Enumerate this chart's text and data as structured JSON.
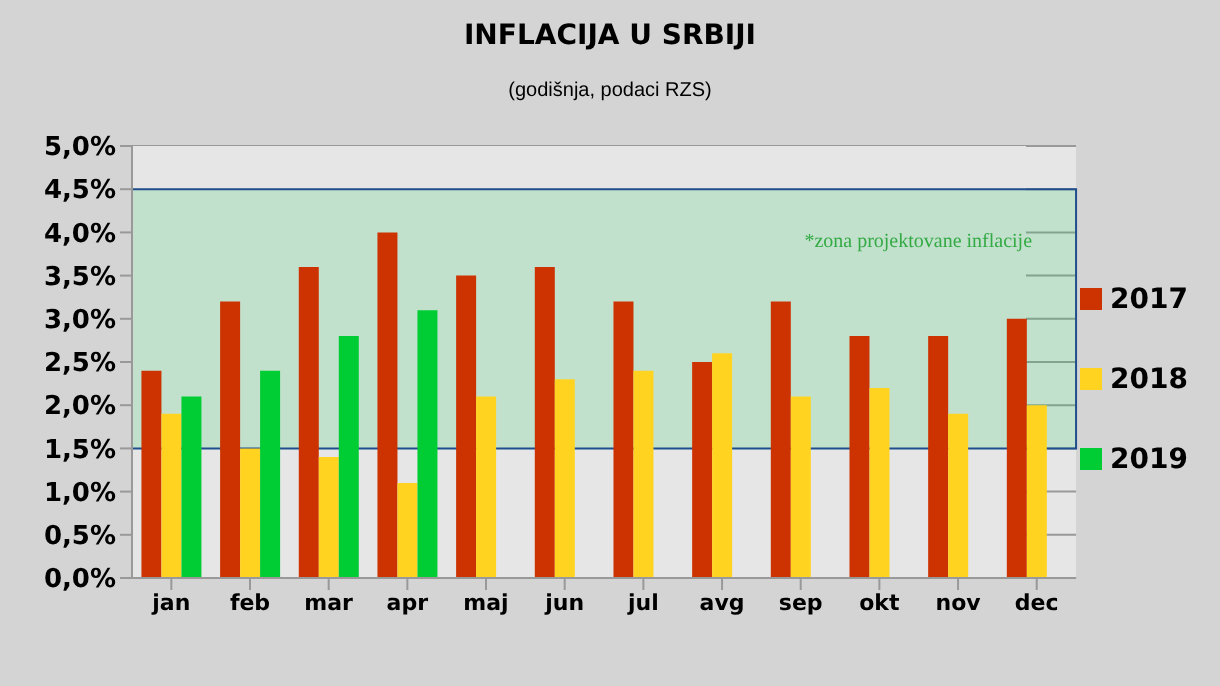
{
  "chart_data": {
    "type": "bar",
    "title": "INFLACIJA U SRBIJI",
    "subtitle": "(godišnja, podaci RZS)",
    "categories": [
      "jan",
      "feb",
      "mar",
      "apr",
      "maj",
      "jun",
      "jul",
      "avg",
      "sep",
      "okt",
      "nov",
      "dec"
    ],
    "series": [
      {
        "name": "2017",
        "color": "#cc3300",
        "values": [
          2.4,
          3.2,
          3.6,
          4.0,
          3.5,
          3.6,
          3.2,
          2.5,
          3.2,
          2.8,
          2.8,
          3.0
        ]
      },
      {
        "name": "2018",
        "color": "#ffd320",
        "values": [
          1.9,
          1.5,
          1.4,
          1.1,
          2.1,
          2.3,
          2.4,
          2.6,
          2.1,
          2.2,
          1.9,
          2.0
        ]
      },
      {
        "name": "2019",
        "color": "#00cc33",
        "values": [
          2.1,
          2.4,
          2.8,
          3.1,
          null,
          null,
          null,
          null,
          null,
          null,
          null,
          null
        ]
      }
    ],
    "ylim": [
      0,
      5
    ],
    "yticks": [
      {
        "value": 0,
        "label": "0,0%"
      },
      {
        "value": 0.5,
        "label": "0,5%"
      },
      {
        "value": 1,
        "label": "1,0%"
      },
      {
        "value": 1.5,
        "label": "1,5%"
      },
      {
        "value": 2,
        "label": "2,0%"
      },
      {
        "value": 2.5,
        "label": "2,5%"
      },
      {
        "value": 3,
        "label": "3,0%"
      },
      {
        "value": 3.5,
        "label": "3,5%"
      },
      {
        "value": 4,
        "label": "4,0%"
      },
      {
        "value": 4.5,
        "label": "4,5%"
      },
      {
        "value": 5,
        "label": "5,0%"
      }
    ],
    "bands": [
      {
        "axis": "y",
        "from": 1.5,
        "to": 4.5,
        "label": "*zona projektovane inflacije",
        "color": "#33cc66"
      }
    ],
    "grid": "y",
    "legend": "right"
  }
}
